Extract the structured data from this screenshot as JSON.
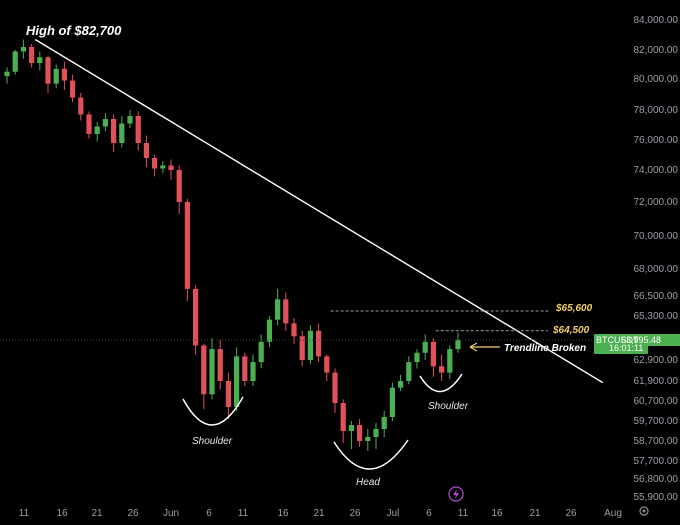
{
  "chart_data": {
    "type": "candlestick",
    "symbol": "BTCUSDT",
    "last_price": "63,995.48",
    "countdown": "16:01:11",
    "y_ticks": [
      "84,000.00",
      "82,000.00",
      "80,000.00",
      "78,000.00",
      "76,000.00",
      "74,000.00",
      "72,000.00",
      "70,000.00",
      "68,000.00",
      "66,500.00",
      "65,300.00",
      "64,000.00",
      "62,900.00",
      "61,900.00",
      "60,700.00",
      "59,700.00",
      "58,700.00",
      "57,700.00",
      "56,800.00",
      "55,900.00"
    ],
    "y_tick_values": [
      84000,
      82000,
      80000,
      78000,
      76000,
      74000,
      72000,
      70000,
      68000,
      66500,
      65300,
      64000,
      62900,
      61900,
      60700,
      59700,
      58700,
      57700,
      56800,
      55900
    ],
    "x_ticks": [
      "11",
      "16",
      "21",
      "26",
      "Jun",
      "6",
      "11",
      "16",
      "21",
      "26",
      "Jul",
      "6",
      "11",
      "16",
      "21",
      "26",
      "Aug"
    ],
    "x_tick_index": [
      0,
      5,
      10,
      15,
      21,
      26,
      31,
      36,
      41,
      46,
      51,
      56,
      61,
      66,
      71,
      76,
      82
    ],
    "candles": [
      [
        80200,
        80800,
        79700,
        80500
      ],
      [
        80500,
        82000,
        80300,
        81900
      ],
      [
        81900,
        82700,
        81400,
        82200
      ],
      [
        82200,
        82400,
        80800,
        81100
      ],
      [
        81100,
        81900,
        80600,
        81500
      ],
      [
        81500,
        81600,
        79100,
        79700
      ],
      [
        79700,
        81000,
        79400,
        80700
      ],
      [
        80700,
        81200,
        79300,
        79900
      ],
      [
        79900,
        80300,
        78500,
        78800
      ],
      [
        78800,
        79100,
        77300,
        77700
      ],
      [
        77700,
        77900,
        76100,
        76400
      ],
      [
        76400,
        77200,
        75900,
        76900
      ],
      [
        76900,
        77800,
        76600,
        77400
      ],
      [
        77400,
        77700,
        75200,
        75800
      ],
      [
        75800,
        77600,
        75500,
        77100
      ],
      [
        77100,
        78000,
        76800,
        77600
      ],
      [
        77600,
        77900,
        75300,
        75800
      ],
      [
        75800,
        76300,
        74200,
        74800
      ],
      [
        74800,
        75000,
        73600,
        74100
      ],
      [
        74100,
        74600,
        73800,
        74300
      ],
      [
        74300,
        74700,
        73400,
        74000
      ],
      [
        74000,
        74300,
        71300,
        72000
      ],
      [
        72000,
        72200,
        66200,
        66900
      ],
      [
        66900,
        67100,
        63200,
        63700
      ],
      [
        63700,
        63800,
        60300,
        61100
      ],
      [
        61100,
        64100,
        60800,
        63500
      ],
      [
        63500,
        64000,
        61400,
        61900
      ],
      [
        61900,
        62300,
        59800,
        60400
      ],
      [
        60400,
        63600,
        60200,
        63100
      ],
      [
        63100,
        63300,
        61600,
        61900
      ],
      [
        61900,
        63200,
        61600,
        62800
      ],
      [
        62800,
        64300,
        62500,
        63900
      ],
      [
        63900,
        65300,
        63600,
        65100
      ],
      [
        65100,
        66900,
        64800,
        66300
      ],
      [
        66300,
        66700,
        64500,
        64900
      ],
      [
        64900,
        65200,
        63800,
        64200
      ],
      [
        64200,
        64500,
        62600,
        62900
      ],
      [
        62900,
        64800,
        62700,
        64500
      ],
      [
        64500,
        64900,
        62800,
        63100
      ],
      [
        63100,
        63200,
        61900,
        62300
      ],
      [
        62300,
        62500,
        60100,
        60600
      ],
      [
        60600,
        60800,
        58600,
        59200
      ],
      [
        59200,
        59700,
        58300,
        59500
      ],
      [
        59500,
        59800,
        58400,
        58700
      ],
      [
        58700,
        59300,
        58200,
        58900
      ],
      [
        58900,
        59600,
        58300,
        59300
      ],
      [
        59300,
        60200,
        58900,
        59900
      ],
      [
        59900,
        61800,
        59700,
        61500
      ],
      [
        61500,
        62200,
        61300,
        61900
      ],
      [
        61900,
        63100,
        61700,
        62800
      ],
      [
        62800,
        63500,
        62500,
        63300
      ],
      [
        63300,
        64300,
        62900,
        63900
      ],
      [
        63900,
        64100,
        62100,
        62600
      ],
      [
        62600,
        63200,
        61900,
        62300
      ],
      [
        62300,
        63700,
        62000,
        63500
      ],
      [
        63500,
        64400,
        63300,
        63995
      ]
    ],
    "lines": {
      "trendline": {
        "from": {
          "index": 1,
          "price": 82700
        },
        "to": {
          "index": 69,
          "price": 61800
        }
      },
      "level_high": {
        "price": 65600,
        "from_index": 33
      },
      "level_low": {
        "price": 64500,
        "from_index": 49
      }
    },
    "colors": {
      "up": "#4caf50",
      "down": "#e0515a",
      "badge": "#4caf50",
      "label_gold": "#f2d06b"
    }
  },
  "annotations": {
    "high": "High of $82,700",
    "level_high": "$65,600",
    "level_low": "$64,500",
    "trendline_broken": "Trendline Broken",
    "left_shoulder": "Shoulder",
    "head": "Head",
    "right_shoulder": "Shoulder"
  },
  "icons": {
    "settings": "gear-icon",
    "watermark": "tradingview-bolt-icon"
  }
}
